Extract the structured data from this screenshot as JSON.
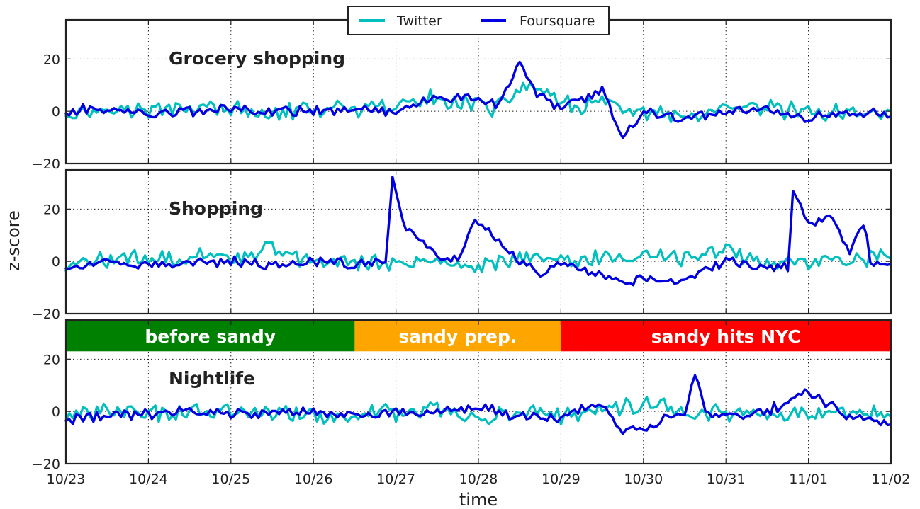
{
  "chart_data": {
    "type": "line",
    "xlabel": "time",
    "ylabel": "z-score",
    "x_ticks": [
      "10/23",
      "10/24",
      "10/25",
      "10/26",
      "10/27",
      "10/28",
      "10/29",
      "10/30",
      "10/31",
      "11/01",
      "11/02"
    ],
    "x_range": [
      "10/23",
      "11/02"
    ],
    "y_ticks": [
      -20,
      0,
      20
    ],
    "ylim": [
      -20,
      35
    ],
    "grid": true,
    "legend": {
      "placement": "top-center",
      "entries": [
        {
          "name": "Twitter",
          "color": "#00bfbf"
        },
        {
          "name": "Foursquare",
          "color": "#0000e0"
        }
      ]
    },
    "phases": [
      {
        "label": "before sandy",
        "start": "10/23",
        "end": "10/26 12:00",
        "color": "#008000"
      },
      {
        "label": "sandy prep.",
        "start": "10/26 12:00",
        "end": "10/29",
        "color": "#ffa500"
      },
      {
        "label": "sandy hits NYC",
        "start": "10/29",
        "end": "11/02",
        "color": "#ff0000"
      }
    ],
    "panels": [
      {
        "title": "Grocery shopping",
        "series": [
          {
            "name": "Twitter",
            "x": [
              "10/23",
              "10/23 12:00",
              "10/24",
              "10/24 12:00",
              "10/25",
              "10/25 12:00",
              "10/26",
              "10/26 12:00",
              "10/27",
              "10/27 12:00",
              "10/28",
              "10/28 06:00",
              "10/28 12:00",
              "10/28 18:00",
              "10/29",
              "10/29 12:00",
              "10/30",
              "10/30 12:00",
              "10/31",
              "10/31 12:00",
              "11/01",
              "11/01 12:00",
              "11/02"
            ],
            "values": [
              -1,
              1,
              0,
              2,
              0,
              -1,
              1,
              0,
              2,
              5,
              3,
              1,
              9,
              9,
              2,
              3,
              -1,
              -3,
              0,
              1,
              0,
              -1,
              0
            ]
          },
          {
            "name": "Foursquare",
            "x": [
              "10/23",
              "10/23 12:00",
              "10/24",
              "10/24 12:00",
              "10/25",
              "10/25 12:00",
              "10/26",
              "10/26 12:00",
              "10/27",
              "10/27 12:00",
              "10/28",
              "10/28 06:00",
              "10/28 12:00",
              "10/28 18:00",
              "10/29",
              "10/29 06:00",
              "10/29 12:00",
              "10/29 18:00",
              "10/30",
              "10/30 12:00",
              "10/31",
              "10/31 12:00",
              "11/01",
              "11/01 12:00",
              "11/02"
            ],
            "values": [
              0,
              1,
              -1,
              0,
              1,
              0,
              0,
              1,
              0,
              6,
              4,
              3,
              19,
              5,
              2,
              5,
              8,
              -10,
              0,
              -3,
              0,
              1,
              -3,
              0,
              -2
            ]
          }
        ]
      },
      {
        "title": "Shopping",
        "series": [
          {
            "name": "Twitter",
            "x": [
              "10/23",
              "10/23 12:00",
              "10/24",
              "10/24 12:00",
              "10/25",
              "10/25 12:00",
              "10/26",
              "10/26 12:00",
              "10/27",
              "10/27 12:00",
              "10/28",
              "10/28 12:00",
              "10/29",
              "10/29 12:00",
              "10/30",
              "10/30 12:00",
              "10/31",
              "10/31 12:00",
              "11/01",
              "11/01 12:00",
              "11/02"
            ],
            "values": [
              -2,
              1,
              0,
              2,
              1,
              5,
              -1,
              0,
              -1,
              0,
              -2,
              2,
              0,
              1,
              2,
              1,
              5,
              -1,
              0,
              1,
              1
            ]
          },
          {
            "name": "Foursquare",
            "x": [
              "10/23",
              "10/23 12:00",
              "10/24",
              "10/24 12:00",
              "10/25",
              "10/25 12:00",
              "10/26",
              "10/26 12:00",
              "10/26 21:00",
              "10/26 23:00",
              "10/27 03:00",
              "10/27 12:00",
              "10/27 18:00",
              "10/27 23:00",
              "10/28 06:00",
              "10/28 12:00",
              "10/28 18:00",
              "10/29",
              "10/29 12:00",
              "10/29 18:00",
              "10/30",
              "10/30 12:00",
              "10/31",
              "10/31 12:00",
              "10/31 18:00",
              "10/31 19:30",
              "11/01",
              "11/01 06:00",
              "11/01 12:00",
              "11/01 16:00",
              "11/01 18:00",
              "11/02"
            ],
            "values": [
              -2,
              -1,
              -1,
              -1,
              0,
              -1,
              0,
              -1,
              0,
              31,
              12,
              2,
              0,
              15,
              8,
              0,
              -5,
              -1,
              -5,
              -8,
              -6,
              -8,
              0,
              -2,
              -2,
              28,
              15,
              18,
              3,
              15,
              0,
              -1
            ]
          }
        ]
      },
      {
        "title": "Nightlife",
        "series": [
          {
            "name": "Twitter",
            "x": [
              "10/23",
              "10/23 12:00",
              "10/24",
              "10/24 12:00",
              "10/25",
              "10/25 12:00",
              "10/26",
              "10/26 12:00",
              "10/27",
              "10/27 12:00",
              "10/28",
              "10/28 12:00",
              "10/29",
              "10/29 12:00",
              "10/30",
              "10/30 12:00",
              "10/31",
              "10/31 12:00",
              "11/01",
              "11/01 12:00",
              "11/02"
            ],
            "values": [
              -2,
              0,
              -1,
              1,
              0,
              -1,
              -2,
              -1,
              0,
              0,
              -2,
              0,
              -1,
              1,
              3,
              1,
              0,
              -2,
              0,
              -1,
              -2
            ]
          },
          {
            "name": "Foursquare",
            "x": [
              "10/23",
              "10/23 12:00",
              "10/24",
              "10/24 12:00",
              "10/25",
              "10/25 12:00",
              "10/26",
              "10/26 12:00",
              "10/27",
              "10/27 12:00",
              "10/28",
              "10/28 12:00",
              "10/29",
              "10/29 12:00",
              "10/29 18:00",
              "10/30",
              "10/30 06:00",
              "10/30 12:00",
              "10/30 15:00",
              "10/30 18:00",
              "10/31",
              "10/31 12:00",
              "11/01",
              "11/01 06:00",
              "11/01 12:00",
              "11/01 18:00",
              "11/02"
            ],
            "values": [
              -3,
              -2,
              -1,
              0,
              -1,
              -1,
              0,
              -2,
              0,
              0,
              2,
              -2,
              -2,
              3,
              -9,
              -6,
              -3,
              0,
              15,
              -1,
              -2,
              0,
              7,
              3,
              -2,
              -3,
              -5
            ]
          }
        ]
      }
    ]
  }
}
